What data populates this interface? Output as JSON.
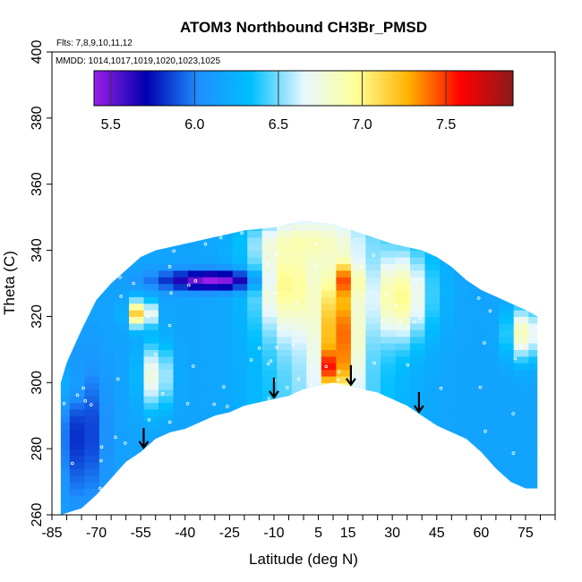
{
  "chart_data": {
    "type": "heatmap",
    "title": "ATOM3 Northbound CH3Br_PMSD",
    "annotations": [
      "Flts: 7,8,9,10,11,12",
      "MMDD: 1014,1017,1019,1020,1023,1025"
    ],
    "xlabel": "Latitude (deg N)",
    "ylabel": "Theta (C)",
    "xlim": [
      -85,
      85
    ],
    "ylim": [
      260,
      400
    ],
    "x_ticks": [
      -85,
      -70,
      -55,
      -40,
      -25,
      -10,
      5,
      15,
      30,
      45,
      60,
      75
    ],
    "y_ticks": [
      260,
      280,
      300,
      320,
      340,
      360,
      380,
      400
    ],
    "colorbar": {
      "range": [
        5.4,
        7.9
      ],
      "ticks": [
        5.5,
        6.0,
        6.5,
        7.0,
        7.5
      ],
      "colors": [
        "#9b1fe8",
        "#0000b0",
        "#1e90ff",
        "#00bfff",
        "#e6f7ff",
        "#ffff99",
        "#ffb300",
        "#ff0000",
        "#8b1a1a"
      ]
    },
    "arrows_latitude": [
      -54,
      -10,
      16,
      39
    ],
    "boundary_lower": [
      [
        -82,
        260
      ],
      [
        -75,
        262
      ],
      [
        -70,
        266
      ],
      [
        -65,
        271
      ],
      [
        -60,
        276
      ],
      [
        -55,
        279
      ],
      [
        -50,
        283
      ],
      [
        -45,
        285
      ],
      [
        -40,
        286
      ],
      [
        -35,
        288
      ],
      [
        -30,
        290
      ],
      [
        -25,
        291
      ],
      [
        -20,
        293
      ],
      [
        -15,
        294
      ],
      [
        -10,
        295
      ],
      [
        -5,
        296
      ],
      [
        0,
        298
      ],
      [
        5,
        299
      ],
      [
        10,
        300
      ],
      [
        15,
        299
      ],
      [
        20,
        298
      ],
      [
        25,
        297
      ],
      [
        30,
        295
      ],
      [
        35,
        293
      ],
      [
        40,
        290
      ],
      [
        45,
        287
      ],
      [
        50,
        285
      ],
      [
        55,
        283
      ],
      [
        60,
        279
      ],
      [
        65,
        274
      ],
      [
        70,
        270
      ],
      [
        75,
        268
      ],
      [
        79,
        268
      ]
    ],
    "boundary_upper": [
      [
        79,
        320
      ],
      [
        75,
        322
      ],
      [
        70,
        324
      ],
      [
        65,
        326
      ],
      [
        60,
        328
      ],
      [
        55,
        331
      ],
      [
        50,
        335
      ],
      [
        45,
        338
      ],
      [
        40,
        340
      ],
      [
        30,
        342
      ],
      [
        20,
        345
      ],
      [
        10,
        348
      ],
      [
        0,
        349
      ],
      [
        -10,
        347
      ],
      [
        -20,
        346
      ],
      [
        -30,
        344
      ],
      [
        -40,
        342
      ],
      [
        -50,
        340
      ],
      [
        -55,
        338
      ],
      [
        -60,
        334
      ],
      [
        -65,
        330
      ],
      [
        -70,
        325
      ],
      [
        -75,
        316
      ],
      [
        -80,
        306
      ],
      [
        -82,
        300
      ]
    ],
    "anomalies": [
      {
        "x": -30,
        "y": 331,
        "value": 5.4,
        "rx": 18,
        "ry": 3
      },
      {
        "x": -55,
        "y": 321,
        "value": 7.3,
        "rx": 4,
        "ry": 4
      },
      {
        "x": -50,
        "y": 302,
        "value": 6.8,
        "rx": 5,
        "ry": 10
      },
      {
        "x": -5,
        "y": 330,
        "value": 7.0,
        "rx": 10,
        "ry": 15
      },
      {
        "x": 12,
        "y": 315,
        "value": 7.45,
        "rx": 6,
        "ry": 18
      },
      {
        "x": 10,
        "y": 305,
        "value": 7.7,
        "rx": 3,
        "ry": 5
      },
      {
        "x": 15,
        "y": 331,
        "value": 7.6,
        "rx": 3,
        "ry": 5
      },
      {
        "x": 32,
        "y": 326,
        "value": 7.0,
        "rx": 8,
        "ry": 12
      },
      {
        "x": 75,
        "y": 315,
        "value": 6.9,
        "rx": 6,
        "ry": 8
      },
      {
        "x": 0,
        "y": 342,
        "value": 6.9,
        "rx": 15,
        "ry": 5
      },
      {
        "x": -75,
        "y": 285,
        "value": 5.8,
        "rx": 8,
        "ry": 20
      },
      {
        "x": -80,
        "y": 300,
        "value": 6.2,
        "rx": 5,
        "ry": 8
      }
    ]
  }
}
